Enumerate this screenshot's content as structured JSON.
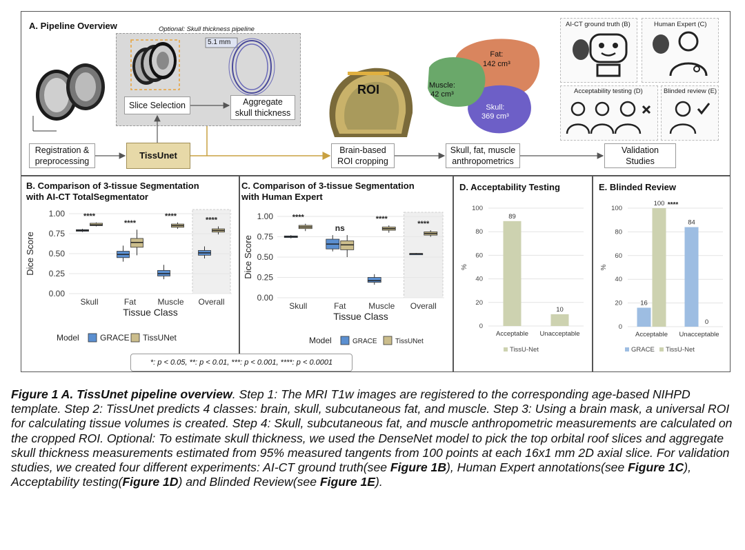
{
  "panelA": {
    "title": "A. Pipeline Overview",
    "optional_label": "Optional: Skull thickness pipeline",
    "thickness_value": "5.1 mm",
    "slice_selection": "Slice Selection",
    "aggregate_line1": "Aggregate",
    "aggregate_line2": "skull thickness",
    "registration_line1": "Registration &",
    "registration_line2": "preprocessing",
    "tissunet": "TissUnet",
    "roi_label": "ROI",
    "brain_roi_line1": "Brain-based",
    "brain_roi_line2": "ROI cropping",
    "fat_label": "Fat:",
    "fat_value": "142 cm³",
    "muscle_label": "Muscle:",
    "muscle_value": "42 cm³",
    "skull_label": "Skull:",
    "skull_value": "369 cm³",
    "anthro_line1": "Skull, fat, muscle",
    "anthro_line2": "anthropometrics",
    "validation_line1": "Validation",
    "validation_line2": "Studies",
    "icon_ai_ct": "AI-CT ground truth (B)",
    "icon_human": "Human Expert (C)",
    "icon_accept": "Acceptability testing (D)",
    "icon_blinded": "Blinded review (E)"
  },
  "panelB": {
    "title_line1": "B. Comparison of 3-tissue Segmentation",
    "title_line2": "with AI-CT TotalSegmentator"
  },
  "panelC": {
    "title_line1": "C. Comparison of 3-tissue Segmentation",
    "title_line2": "with Human Expert"
  },
  "panelD": {
    "title": "D. Acceptability Testing"
  },
  "panelE": {
    "title": "E. Blinded Review"
  },
  "significance_legend": "*: p < 0.05, **: p < 0.01, ***: p < 0.001, ****: p < 0.0001",
  "colors": {
    "grace": "#5b8fd0",
    "tissunet": "#cbbd8c",
    "tissunet_bar": "#cdd2b0",
    "grace_bar": "#9dbde2"
  },
  "chart_data": [
    {
      "id": "B",
      "type": "box",
      "title": "B. Comparison of 3-tissue Segmentation with AI-CT TotalSegmentator",
      "xlabel": "Tissue Class",
      "ylabel": "Dice Score",
      "ylim": [
        0,
        1
      ],
      "yticks": [
        "0.00",
        "0.25",
        "0.50",
        "0.75",
        "1.00"
      ],
      "categories": [
        "Skull",
        "Fat",
        "Muscle",
        "Overall"
      ],
      "legend_title": "Model",
      "series": [
        {
          "name": "GRACE",
          "boxes": [
            [
              0.77,
              0.78,
              0.79,
              0.8,
              0.81
            ],
            [
              0.4,
              0.45,
              0.49,
              0.53,
              0.6
            ],
            [
              0.18,
              0.22,
              0.25,
              0.29,
              0.36
            ],
            [
              0.44,
              0.48,
              0.51,
              0.54,
              0.59
            ]
          ]
        },
        {
          "name": "TissUNet",
          "boxes": [
            [
              0.84,
              0.85,
              0.86,
              0.88,
              0.89
            ],
            [
              0.48,
              0.58,
              0.64,
              0.69,
              0.8
            ],
            [
              0.81,
              0.83,
              0.85,
              0.87,
              0.89
            ],
            [
              0.74,
              0.77,
              0.79,
              0.81,
              0.84
            ]
          ]
        }
      ],
      "significance": [
        "****",
        "****",
        "****",
        "****"
      ]
    },
    {
      "id": "C",
      "type": "box",
      "title": "C. Comparison of 3-tissue Segmentation with Human Expert",
      "xlabel": "Tissue Class",
      "ylabel": "Dice Score",
      "ylim": [
        0,
        1
      ],
      "yticks": [
        "0.00",
        "0.25",
        "0.50",
        "0.75",
        "1.00"
      ],
      "categories": [
        "Skull",
        "Fat",
        "Muscle",
        "Overall"
      ],
      "legend_title": "Model",
      "series": [
        {
          "name": "GRACE",
          "boxes": [
            [
              0.73,
              0.74,
              0.75,
              0.76,
              0.77
            ],
            [
              0.57,
              0.6,
              0.66,
              0.72,
              0.77
            ],
            [
              0.16,
              0.19,
              0.21,
              0.25,
              0.29
            ],
            [
              0.53,
              0.535,
              0.54,
              0.545,
              0.55
            ]
          ]
        },
        {
          "name": "TissUNet",
          "boxes": [
            [
              0.82,
              0.85,
              0.87,
              0.89,
              0.91
            ],
            [
              0.5,
              0.59,
              0.65,
              0.7,
              0.77
            ],
            [
              0.8,
              0.83,
              0.85,
              0.87,
              0.89
            ],
            [
              0.75,
              0.77,
              0.79,
              0.81,
              0.83
            ]
          ]
        }
      ],
      "significance": [
        "****",
        "ns",
        "****",
        "****"
      ]
    },
    {
      "id": "D",
      "type": "bar",
      "title": "D. Acceptability Testing",
      "ylabel": "%",
      "ylim": [
        0,
        100
      ],
      "yticks": [
        "0",
        "20",
        "40",
        "60",
        "80",
        "100"
      ],
      "categories": [
        "Acceptable",
        "Unacceptable"
      ],
      "series": [
        {
          "name": "TissU-Net",
          "values": [
            89,
            10
          ]
        }
      ]
    },
    {
      "id": "E",
      "type": "bar",
      "title": "E. Blinded Review",
      "ylabel": "%",
      "ylim": [
        0,
        100
      ],
      "yticks": [
        "0",
        "20",
        "40",
        "60",
        "80",
        "100"
      ],
      "categories": [
        "Acceptable",
        "Unacceptable"
      ],
      "series": [
        {
          "name": "GRACE",
          "values": [
            16,
            84
          ]
        },
        {
          "name": "TissU-Net",
          "values": [
            100,
            0
          ]
        }
      ],
      "significance": "****"
    }
  ],
  "caption": {
    "part1_bold": "Figure 1 A. TissUnet pipeline overview",
    "part2": ". Step 1: The MRI T1w images are registered to the corresponding age-based NIHPD template. Step 2: TissUnet predicts 4 classes: brain, skull, subcutaneous fat, and muscle. Step 3: Using a brain mask, a universal ROI for calculating tissue volumes is created. Step 4: Skull, subcutaneous fat, and muscle anthropometric measurements are calculated on the cropped ROI. Optional: To estimate skull thickness, we used the DenseNet model to pick the top orbital roof slices and aggregate skull thickness measurements estimated from 95% measured tangents from 100 points at each 16x1 mm 2D axial slice. For validation studies, we created four different experiments: AI-CT ground truth(see ",
    "ref_b": "Figure 1B",
    "part3": "), Human Expert annotations(see ",
    "ref_c": "Figure 1C",
    "part4": "), Acceptability testing(",
    "ref_d": "Figure 1D",
    "part5": ") and Blinded Review(see ",
    "ref_e": "Figure 1E",
    "part6": ")."
  }
}
